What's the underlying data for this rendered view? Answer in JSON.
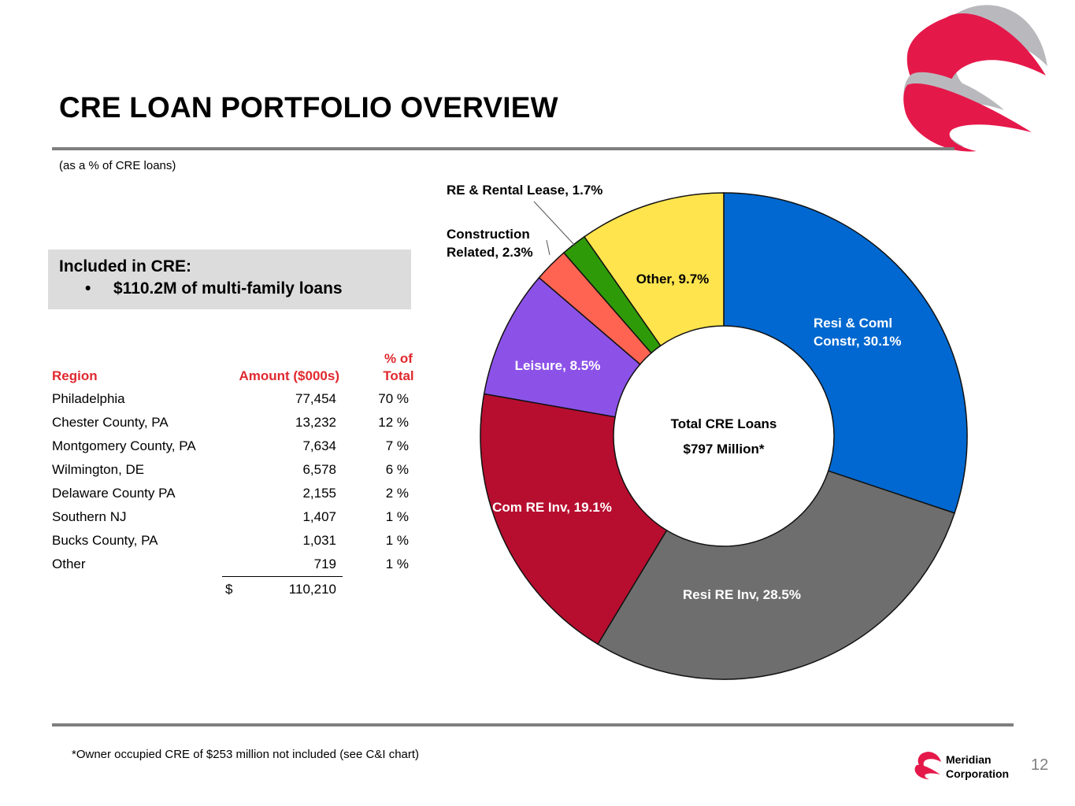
{
  "header": {
    "title": "CRE LOAN PORTFOLIO OVERVIEW",
    "subtitle": "(as a % of CRE loans)"
  },
  "callout": {
    "heading": "Included in CRE:",
    "bullet": "$110.2M of multi-family loans"
  },
  "region_table": {
    "headers": {
      "region": "Region",
      "amount": "Amount ($000s)",
      "pct_line1": "% of",
      "pct_line2": "Total"
    },
    "rows": [
      {
        "region": "Philadelphia",
        "amount": "77,454",
        "pct": "70 %"
      },
      {
        "region": "Chester County, PA",
        "amount": "13,232",
        "pct": "12 %"
      },
      {
        "region": "Montgomery County, PA",
        "amount": "7,634",
        "pct": "7 %"
      },
      {
        "region": "Wilmington, DE",
        "amount": "6,578",
        "pct": "6 %"
      },
      {
        "region": "Delaware County PA",
        "amount": "2,155",
        "pct": "2 %"
      },
      {
        "region": "Southern NJ",
        "amount": "1,407",
        "pct": "1 %"
      },
      {
        "region": "Bucks County, PA",
        "amount": "1,031",
        "pct": "1 %"
      },
      {
        "region": "Other",
        "amount": "719",
        "pct": "1 %"
      }
    ],
    "total": {
      "currency": "$",
      "amount": "110,210"
    }
  },
  "chart_data": {
    "type": "pie",
    "subtype": "donut",
    "center_label": [
      "Total CRE Loans",
      "$797 Million*"
    ],
    "slices": [
      {
        "label": "Resi & Coml Constr, 30.1%",
        "lines": [
          "Resi & Coml",
          "Constr, 30.1%"
        ],
        "value": 30.1,
        "color": "#0068d0",
        "label_color": "#ffffff"
      },
      {
        "label": "Resi RE Inv, 28.5%",
        "lines": [
          "Resi RE Inv, 28.5%"
        ],
        "value": 28.5,
        "color": "#6e6e6e",
        "label_color": "#ffffff"
      },
      {
        "label": "Com RE Inv, 19.1%",
        "lines": [
          "Com RE Inv, 19.1%"
        ],
        "value": 19.1,
        "color": "#b70e2f",
        "label_color": "#ffffff"
      },
      {
        "label": "Leisure, 8.5%",
        "lines": [
          "Leisure, 8.5%"
        ],
        "value": 8.5,
        "color": "#8c52e8",
        "label_color": "#ffffff"
      },
      {
        "label": "Construction Related, 2.3%",
        "lines": [
          "Construction",
          "Related, 2.3%"
        ],
        "value": 2.3,
        "color": "#ff6452",
        "label_color": "#000000"
      },
      {
        "label": "RE & Rental Lease, 1.7%",
        "lines": [
          "RE & Rental Lease, 1.7%"
        ],
        "value": 1.7,
        "color": "#2f9a08",
        "label_color": "#000000"
      },
      {
        "label": "Other, 9.7%",
        "lines": [
          "Other, 9.7%"
        ],
        "value": 9.7,
        "color": "#ffe44d",
        "label_color": "#000000"
      }
    ]
  },
  "footer": {
    "footnote": "*Owner occupied CRE of $253 million not included (see C&I chart)",
    "company_line1": "Meridian",
    "company_line2": "Corporation",
    "page_number": "12"
  }
}
